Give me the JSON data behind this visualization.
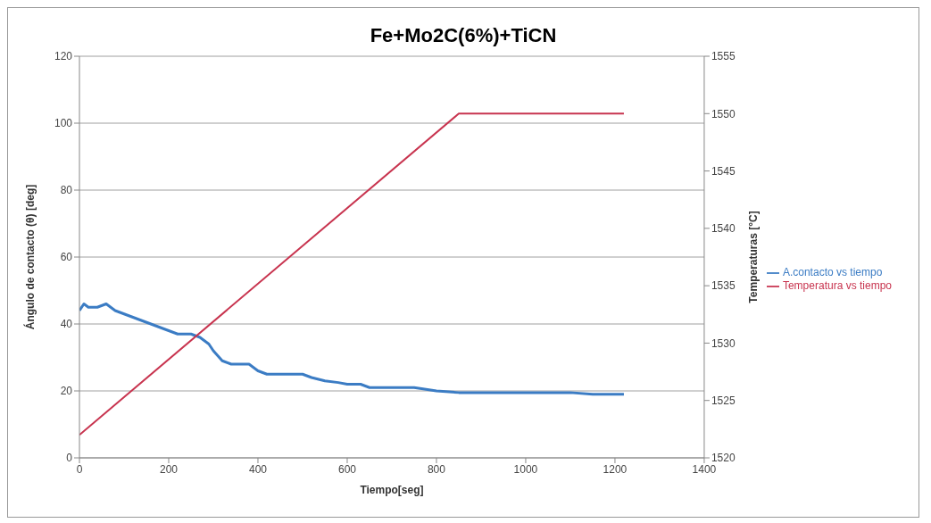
{
  "chart_data": {
    "type": "line",
    "title": "Fe+Mo2C(6%)+TiCN",
    "xlabel": "Tiempo[seg]",
    "ylabel": "Ángulo de contacto (θ) [deg]",
    "y2label": "Temperaturas [°C]",
    "xlim": [
      0,
      1400
    ],
    "xticks": [
      0,
      200,
      400,
      600,
      800,
      1000,
      1200,
      1400
    ],
    "ylim": [
      0,
      120
    ],
    "yticks": [
      0,
      20,
      40,
      60,
      80,
      100,
      120
    ],
    "y2lim": [
      1520,
      1555
    ],
    "y2ticks": [
      1520,
      1525,
      1530,
      1535,
      1540,
      1545,
      1550,
      1555
    ],
    "grid": "y",
    "legend": "right",
    "marker": "none",
    "line_style": "solid",
    "series": [
      {
        "name": "A.contacto vs tiempo",
        "color": "#3b7cc4",
        "x": [
          0,
          10,
          20,
          40,
          60,
          70,
          80,
          100,
          120,
          140,
          160,
          180,
          200,
          220,
          250,
          270,
          290,
          300,
          320,
          340,
          360,
          380,
          400,
          420,
          450,
          480,
          500,
          520,
          550,
          580,
          600,
          630,
          650,
          680,
          700,
          750,
          800,
          850,
          900,
          950,
          1000,
          1050,
          1100,
          1150,
          1200,
          1220
        ],
        "values": [
          44,
          46,
          45,
          45,
          46,
          45,
          44,
          43,
          42,
          41,
          40,
          39,
          38,
          37,
          37,
          36,
          34,
          32,
          29,
          28,
          28,
          28,
          26,
          25,
          25,
          25,
          25,
          24,
          23,
          22.5,
          22,
          22,
          21,
          21,
          21,
          21,
          20,
          19.5,
          19.5,
          19.5,
          19.5,
          19.5,
          19.5,
          19,
          19,
          19
        ]
      },
      {
        "name": "Temperatura vs tiempo",
        "color": "#c8344f",
        "axis": "y2",
        "x": [
          0,
          850,
          1220
        ],
        "values": [
          1522,
          1550,
          1550
        ]
      }
    ]
  }
}
